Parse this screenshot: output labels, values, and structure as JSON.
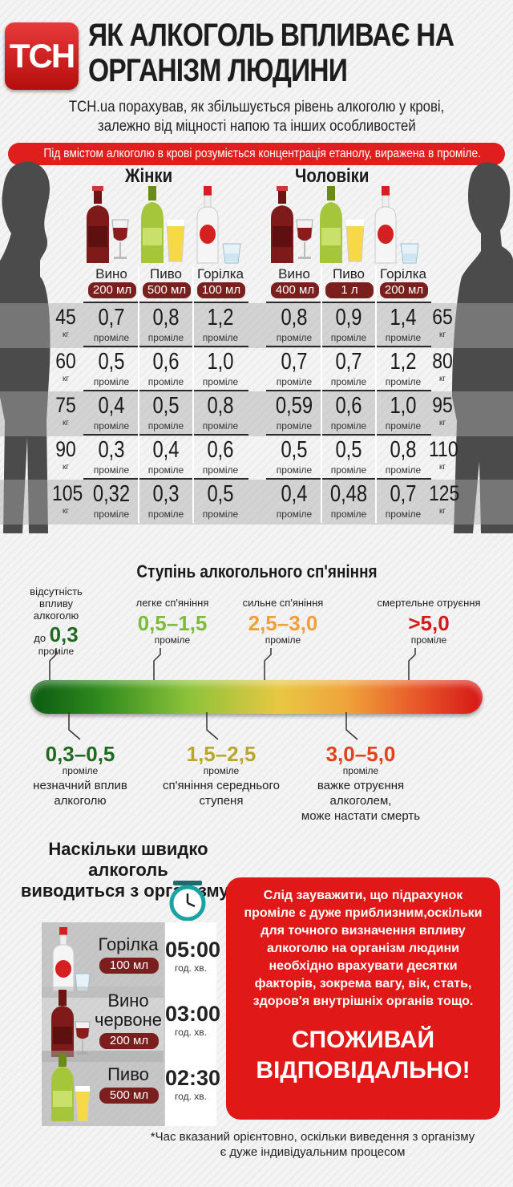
{
  "header": {
    "logo": "ТСН",
    "title_line1": "ЯК АЛКОГОЛЬ ВПЛИВАЄ НА",
    "title_line2": "ОРГАНІЗМ ЛЮДИНИ",
    "subtitle_line1": "TCH.ua порахував, як збільшується рівень алкоголю у крові,",
    "subtitle_line2": "залежно від міцності напою та інших особливостей",
    "note": "Під вмістом алкоголю в крові розуміється концентрація етанолу, виражена в проміле."
  },
  "colors": {
    "accent_red": "#e01e1e",
    "wine_red": "#7a1e1e",
    "dark_text": "#1a1a1a"
  },
  "women": {
    "title": "Жінки",
    "drinks": [
      {
        "name": "Вино",
        "volume": "200 мл"
      },
      {
        "name": "Пиво",
        "volume": "500 мл"
      },
      {
        "name": "Горілка",
        "volume": "100 мл"
      }
    ],
    "rows": [
      {
        "weight": "45",
        "values": [
          "0,7",
          "0,8",
          "1,2"
        ]
      },
      {
        "weight": "60",
        "values": [
          "0,5",
          "0,6",
          "1,0"
        ]
      },
      {
        "weight": "75",
        "values": [
          "0,4",
          "0,5",
          "0,8"
        ]
      },
      {
        "weight": "90",
        "values": [
          "0,3",
          "0,4",
          "0,6"
        ]
      },
      {
        "weight": "105",
        "values": [
          "0,32",
          "0,3",
          "0,5"
        ]
      }
    ]
  },
  "men": {
    "title": "Чоловіки",
    "drinks": [
      {
        "name": "Вино",
        "volume": "400 мл"
      },
      {
        "name": "Пиво",
        "volume": "1 л"
      },
      {
        "name": "Горілка",
        "volume": "200 мл"
      }
    ],
    "rows": [
      {
        "weight": "65",
        "values": [
          "0,8",
          "0,9",
          "1,4"
        ]
      },
      {
        "weight": "80",
        "values": [
          "0,7",
          "0,7",
          "1,2"
        ]
      },
      {
        "weight": "95",
        "values": [
          "0,59",
          "0,6",
          "1,0"
        ]
      },
      {
        "weight": "110",
        "values": [
          "0,5",
          "0,5",
          "0,8"
        ]
      },
      {
        "weight": "125",
        "values": [
          "0,4",
          "0,48",
          "0,7"
        ]
      }
    ]
  },
  "units": {
    "promile": "проміле",
    "kg": "кг"
  },
  "scale": {
    "title": "Ступінь алкогольного сп'яніння",
    "above": [
      {
        "label": "відсутність впливу алкоголю",
        "prefix": "до",
        "value": "0,3",
        "color": "#1e6a1e"
      },
      {
        "label": "легке сп'яніння",
        "prefix": "",
        "value": "0,5–1,5",
        "color": "#7dbb3a"
      },
      {
        "label": "сильне сп'яніння",
        "prefix": "",
        "value": "2,5–3,0",
        "color": "#f0a03a"
      },
      {
        "label": "смертельне отруєння",
        "prefix": "",
        "value": ">5,0",
        "color": "#d41a1a"
      }
    ],
    "below": [
      {
        "value": "0,3–0,5",
        "label_line1": "незначний вплив",
        "label_line2": "алкоголю",
        "color": "#1e6a1e"
      },
      {
        "value": "1,5–2,5",
        "label_line1": "сп'яніння середнього",
        "label_line2": "ступеня",
        "color": "#b8a72a"
      },
      {
        "value": "3,0–5,0",
        "label_line1": "важке отруєння алкоголем,",
        "label_line2": "може настати смерть",
        "color": "#e0421e"
      }
    ]
  },
  "elimination": {
    "title_line1": "Наскільки швидко алкоголь",
    "title_line2": "виводиться з організму*",
    "time_unit": "год. хв.",
    "items": [
      {
        "name_line1": "Горілка",
        "name_line2": "",
        "volume": "100 мл",
        "time": "05:00"
      },
      {
        "name_line1": "Вино",
        "name_line2": "червоне",
        "volume": "200 мл",
        "time": "03:00"
      },
      {
        "name_line1": "Пиво",
        "name_line2": "",
        "volume": "500 мл",
        "time": "02:30"
      }
    ],
    "footnote_line1": "*Час вказаний орієнтовно, оскільки виведення з організму",
    "footnote_line2": "є дуже індивідуальним процесом"
  },
  "warning": {
    "text": "Слід зауважити, що підрахунок проміле є дуже приблизним,оскільки для точного визначення впливу алкоголю на організм людини необхідно врахувати десятки факторів, зокрема вагу, вік, стать, здоров'я внутрішніх органів тощо.",
    "call_line1": "СПОЖИВАЙ",
    "call_line2": "ВІДПОВІДАЛЬНО!"
  }
}
